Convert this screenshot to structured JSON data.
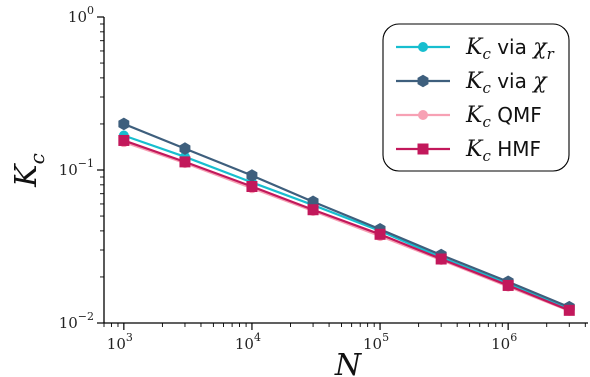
{
  "chart_data": {
    "type": "line",
    "xlabel": "N",
    "ylabel": "K_c",
    "xscale": "log",
    "yscale": "log",
    "xlim": [
      700,
      4200000
    ],
    "ylim": [
      0.01,
      1.0
    ],
    "x_ticks": [
      {
        "value": 1000,
        "base": "10",
        "exp": "3"
      },
      {
        "value": 10000,
        "base": "10",
        "exp": "4"
      },
      {
        "value": 100000,
        "base": "10",
        "exp": "5"
      },
      {
        "value": 1000000,
        "base": "10",
        "exp": "6"
      }
    ],
    "y_ticks": [
      {
        "value": 0.01,
        "base": "10",
        "exp": "−2"
      },
      {
        "value": 0.1,
        "base": "10",
        "exp": "−1"
      },
      {
        "value": 1.0,
        "base": "10",
        "exp": "0"
      }
    ],
    "x": [
      1000,
      3000,
      10000,
      30000,
      100000,
      300000,
      1000000,
      3000000
    ],
    "series": [
      {
        "name": "K_c via χ_r",
        "name_main": "K",
        "name_sub": "c",
        "name_rest": " via ",
        "name_greek": "χ",
        "name_greek_sub": "r",
        "color": "#17becf",
        "marker": "circle",
        "values": [
          0.168,
          0.122,
          0.083,
          0.059,
          0.04,
          0.0268,
          0.018,
          0.0123
        ]
      },
      {
        "name": "K_c via χ",
        "name_main": "K",
        "name_sub": "c",
        "name_rest": " via ",
        "name_greek": "χ",
        "name_greek_sub": "",
        "color": "#3e5f7d",
        "marker": "hexagon",
        "values": [
          0.2,
          0.138,
          0.092,
          0.062,
          0.041,
          0.0278,
          0.0186,
          0.0127
        ]
      },
      {
        "name": "K_c QMF",
        "name_main": "K",
        "name_sub": "c",
        "name_rest": " QMF",
        "name_greek": "",
        "name_greek_sub": "",
        "color": "#f7a1b4",
        "marker": "circle",
        "values": [
          0.152,
          0.111,
          0.076,
          0.054,
          0.037,
          0.0258,
          0.0173,
          0.012
        ]
      },
      {
        "name": "K_c HMF",
        "name_main": "K",
        "name_sub": "c",
        "name_rest": " HMF",
        "name_greek": "",
        "name_greek_sub": "",
        "color": "#c2185b",
        "marker": "square",
        "values": [
          0.156,
          0.113,
          0.078,
          0.055,
          0.038,
          0.0262,
          0.0176,
          0.0121
        ]
      }
    ],
    "legend_position": "top-right",
    "grid": false
  }
}
